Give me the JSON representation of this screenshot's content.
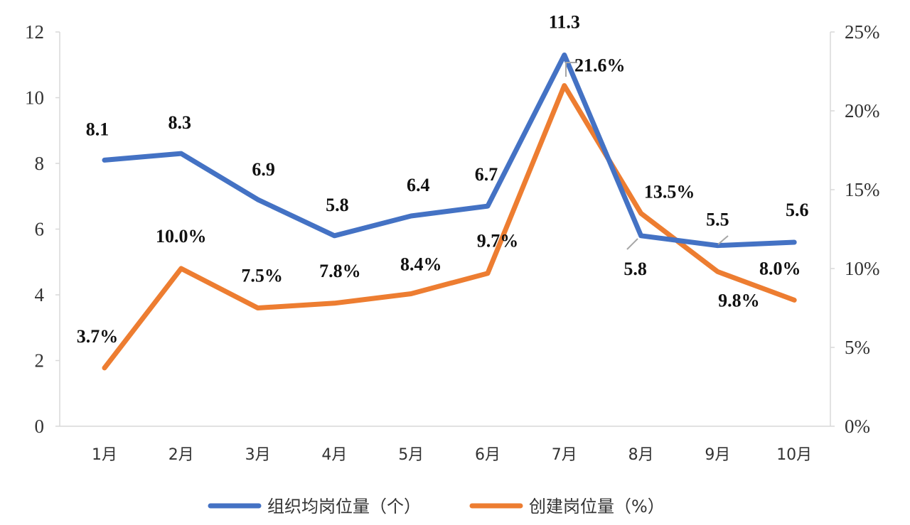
{
  "chart_data": {
    "type": "line",
    "categories": [
      "1月",
      "2月",
      "3月",
      "4月",
      "5月",
      "6月",
      "7月",
      "8月",
      "9月",
      "10月"
    ],
    "series": [
      {
        "name": "组织均岗位量（个）",
        "axis": "left",
        "color": "#4472C4",
        "values": [
          8.1,
          8.3,
          6.9,
          5.8,
          6.4,
          6.7,
          11.3,
          5.8,
          5.5,
          5.6
        ],
        "labels": [
          "8.1",
          "8.3",
          "6.9",
          "5.8",
          "6.4",
          "6.7",
          "11.3",
          "5.8",
          "5.5",
          "5.6"
        ]
      },
      {
        "name": "创建岗位量（%）",
        "axis": "right",
        "color": "#ED7D31",
        "values": [
          3.7,
          10.0,
          7.5,
          7.8,
          8.4,
          9.7,
          21.6,
          13.5,
          9.8,
          8.0
        ],
        "labels": [
          "3.7%",
          "10.0%",
          "7.5%",
          "7.8%",
          "8.4%",
          "9.7%",
          "21.6%",
          "13.5%",
          "9.8%",
          "8.0%"
        ]
      }
    ],
    "y_left": {
      "min": 0,
      "max": 12,
      "ticks": [
        "0",
        "2",
        "4",
        "6",
        "8",
        "10",
        "12"
      ]
    },
    "y_right": {
      "min": 0,
      "max": 25,
      "ticks": [
        "0%",
        "5%",
        "10%",
        "15%",
        "20%",
        "25%"
      ]
    },
    "grid": false,
    "legend_position": "bottom"
  }
}
